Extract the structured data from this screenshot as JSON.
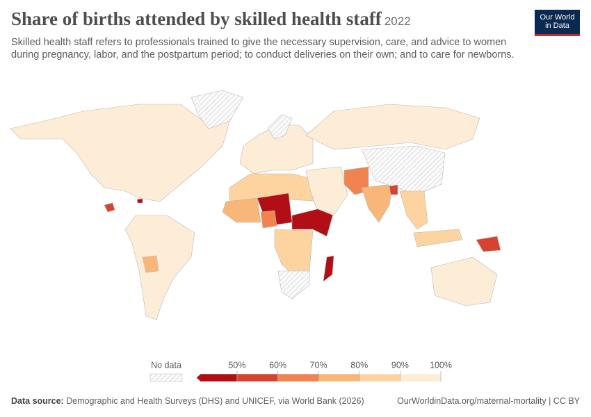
{
  "header": {
    "title": "Share of births attended by skilled health staff",
    "year": "2022",
    "subtitle": "Skilled health staff refers to professionals trained to give the necessary supervision, care, and advice to women during pregnancy, labor, and the postpartum period; to conduct deliveries on their own; and to care for newborns.",
    "logo": [
      "Our World",
      "in Data"
    ]
  },
  "legend": {
    "no_data_label": "No data",
    "ticks": [
      {
        "value": 50,
        "label": "50%"
      },
      {
        "value": 60,
        "label": "60%"
      },
      {
        "value": 70,
        "label": "70%"
      },
      {
        "value": 80,
        "label": "80%"
      },
      {
        "value": 90,
        "label": "90%"
      },
      {
        "value": 100,
        "label": "100%"
      }
    ],
    "colors": [
      "#b10f15",
      "#d8432f",
      "#f0834f",
      "#f8b678",
      "#fdd4a0",
      "#fdecd6"
    ]
  },
  "footer": {
    "source_label": "Data source:",
    "source": "Demographic and Health Surveys (DHS) and UNICEF, via World Bank (2026)",
    "link": "OurWorldinData.org/maternal-mortality | CC BY"
  }
}
